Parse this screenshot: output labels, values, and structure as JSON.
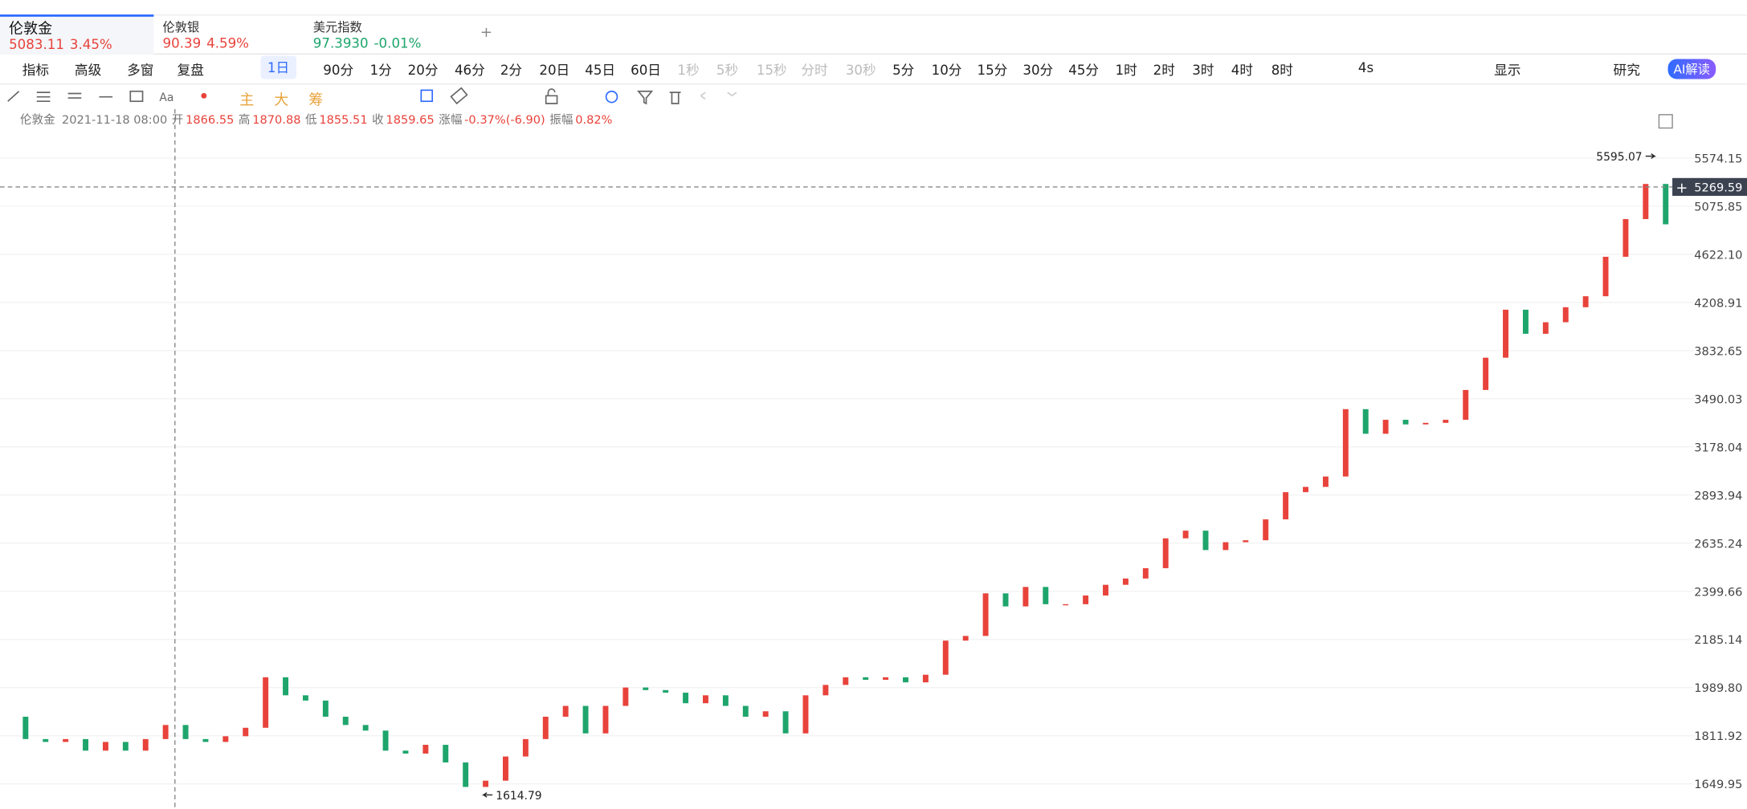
{
  "tabs": [
    {
      "name": "伦敦金",
      "price": "5083.11",
      "change": "3.45%"
    },
    {
      "name": "伦敦银",
      "price": "90.39",
      "change": "4.59%"
    },
    {
      "name": "美元指数",
      "price": "97.3930",
      "change": "-0.01%"
    }
  ],
  "toolbar": {
    "tools": [
      "指标",
      "高级",
      "多窗",
      "复盘"
    ],
    "active_period": "1日",
    "periods": [
      "90分",
      "1分",
      "20分",
      "46分",
      "2分",
      "20日",
      "45日",
      "60日"
    ],
    "disabled_periods": [
      "1秒",
      "5秒",
      "15秒",
      "分时",
      "30秒"
    ],
    "minute_periods": [
      "5分",
      "10分",
      "15分",
      "30分",
      "45分",
      "1时",
      "2时",
      "3时",
      "4时",
      "8时"
    ],
    "refresh": "4s",
    "display": "显示",
    "research": "研究",
    "ai": "AI解读"
  },
  "chip_tools": [
    "主",
    "大",
    "筹"
  ],
  "ohlc_bar": {
    "symbol": "伦敦金",
    "time": "2021-11-18 08:00",
    "fields": [
      {
        "label": "开",
        "value": "1866.55"
      },
      {
        "label": "高",
        "value": "1870.88"
      },
      {
        "label": "低",
        "value": "1855.51"
      },
      {
        "label": "收",
        "value": "1859.65"
      },
      {
        "label": "涨幅",
        "value": "-0.37%(-6.90)"
      },
      {
        "label": "振幅",
        "value": "0.82%"
      }
    ]
  },
  "chart_data": {
    "type": "candlestick",
    "log": true,
    "values": [
      1880,
      1800,
      1790,
      1800,
      1760,
      1790,
      1760,
      1800,
      1850,
      1800,
      1790,
      1810,
      1840,
      2030,
      1960,
      1940,
      1880,
      1850,
      1830,
      1760,
      1750,
      1780,
      1720,
      1640,
      1660,
      1740,
      1800,
      1880,
      1920,
      1820,
      1920,
      1990,
      1980,
      1970,
      1930,
      1960,
      1920,
      1880,
      1900,
      1820,
      1960,
      2000,
      2030,
      2020,
      2030,
      2010,
      2040,
      2180,
      2200,
      2390,
      2330,
      2420,
      2340,
      2340,
      2380,
      2430,
      2460,
      2510,
      2660,
      2700,
      2600,
      2640,
      2650,
      2760,
      2910,
      2940,
      3000,
      3420,
      3260,
      3350,
      3320,
      3330,
      3350,
      3550,
      3780,
      4150,
      3960,
      4050,
      4170,
      4260,
      4600,
      4950,
      5300,
      4900
    ],
    "colors": {
      "up": "#e8433b",
      "down": "#1ea56c"
    },
    "ylim": [
      1570,
      6131
    ],
    "yticks": [
      5574.15,
      5075.85,
      {
        "value": 4622.1,
        "label": "4622.10"
      },
      4208.91,
      3832.65,
      3490.03,
      3178.04,
      2893.94,
      2635.24,
      2399.66,
      2185.14,
      {
        "value": 1989.8,
        "label": "1989.80"
      },
      1811.92,
      1649.95
    ],
    "grid": true,
    "high_mark": 5595.07,
    "low_mark": 1614.79,
    "crosshair_price": 5269.59
  }
}
